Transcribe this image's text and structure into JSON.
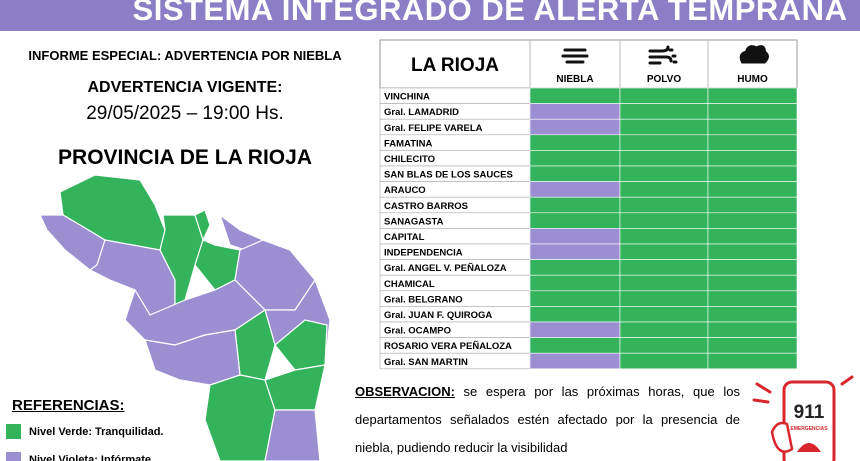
{
  "header": {
    "title": "SISTEMA INTEGRADO DE ALERTA TEMPRANA"
  },
  "left": {
    "report": "INFORME ESPECIAL: ADVERTENCIA POR NIEBLA",
    "warning_label": "ADVERTENCIA VIGENTE:",
    "datetime": "29/05/2025 – 19:00 Hs.",
    "province": "PROVINCIA DE LA RIOJA"
  },
  "references": {
    "title": "REFERENCIAS:",
    "items": [
      {
        "label": "Nivel Verde: Tranquilidad.",
        "color": "#33b35b"
      },
      {
        "label": "Nivel Violeta: Infórmate.",
        "color": "#9b8fd2"
      }
    ]
  },
  "table": {
    "title": "LA RIOJA",
    "columns": [
      "NIEBLA",
      "POLVO",
      "HUMO"
    ],
    "rows": [
      {
        "name": "VINCHINA",
        "levels": [
          "#33b35b",
          "#33b35b",
          "#33b35b"
        ]
      },
      {
        "name": "Gral. LAMADRID",
        "levels": [
          "#9b8fd2",
          "#33b35b",
          "#33b35b"
        ]
      },
      {
        "name": "Gral. FELIPE VARELA",
        "levels": [
          "#9b8fd2",
          "#33b35b",
          "#33b35b"
        ]
      },
      {
        "name": "FAMATINA",
        "levels": [
          "#33b35b",
          "#33b35b",
          "#33b35b"
        ]
      },
      {
        "name": "CHILECITO",
        "levels": [
          "#33b35b",
          "#33b35b",
          "#33b35b"
        ]
      },
      {
        "name": "SAN BLAS DE LOS SAUCES",
        "levels": [
          "#33b35b",
          "#33b35b",
          "#33b35b"
        ]
      },
      {
        "name": "ARAUCO",
        "levels": [
          "#9b8fd2",
          "#33b35b",
          "#33b35b"
        ]
      },
      {
        "name": "CASTRO BARROS",
        "levels": [
          "#33b35b",
          "#33b35b",
          "#33b35b"
        ]
      },
      {
        "name": "SANAGASTA",
        "levels": [
          "#33b35b",
          "#33b35b",
          "#33b35b"
        ]
      },
      {
        "name": "CAPITAL",
        "levels": [
          "#9b8fd2",
          "#33b35b",
          "#33b35b"
        ]
      },
      {
        "name": "INDEPENDENCIA",
        "levels": [
          "#9b8fd2",
          "#33b35b",
          "#33b35b"
        ]
      },
      {
        "name": "Gral. ANGEL V. PEÑALOZA",
        "levels": [
          "#33b35b",
          "#33b35b",
          "#33b35b"
        ]
      },
      {
        "name": "CHAMICAL",
        "levels": [
          "#33b35b",
          "#33b35b",
          "#33b35b"
        ]
      },
      {
        "name": "Gral. BELGRANO",
        "levels": [
          "#33b35b",
          "#33b35b",
          "#33b35b"
        ]
      },
      {
        "name": "Gral. JUAN F. QUIROGA",
        "levels": [
          "#33b35b",
          "#33b35b",
          "#33b35b"
        ]
      },
      {
        "name": "Gral. OCAMPO",
        "levels": [
          "#9b8fd2",
          "#33b35b",
          "#33b35b"
        ]
      },
      {
        "name": "ROSARIO VERA PEÑALOZA",
        "levels": [
          "#33b35b",
          "#33b35b",
          "#33b35b"
        ]
      },
      {
        "name": "Gral. SAN MARTIN",
        "levels": [
          "#9b8fd2",
          "#33b35b",
          "#33b35b"
        ]
      }
    ]
  },
  "observation": {
    "label": "OBSERVACION:",
    "text": "se espera por las próximas horas, que los departamentos señalados estén afectado por la presencia de niebla, pudiendo reducir la visibilidad"
  },
  "badge": {
    "number": "911",
    "caption": "EMERGENCIAS"
  }
}
